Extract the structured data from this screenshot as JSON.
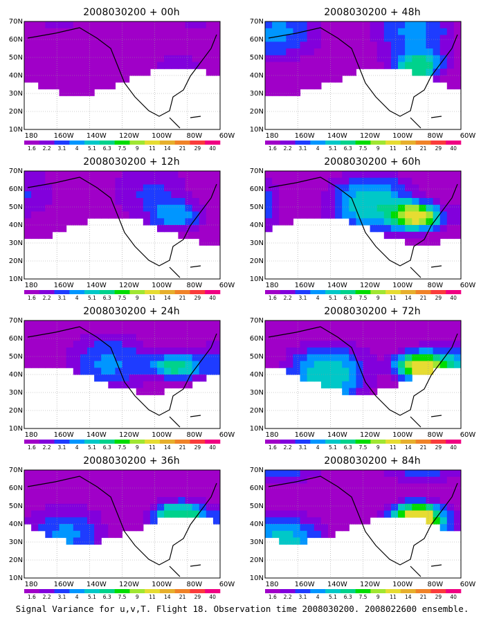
{
  "figure": {
    "caption": "Signal Variance for u,v,T. Flight 18. Observation time 2008030200. 2008022600 ensemble."
  },
  "colors": {
    "land_outline": "#000000",
    "grid": "#999999"
  },
  "chart_data": [
    {
      "type": "heatmap",
      "title": "2008030200 + 00h",
      "yticks": [
        "70N",
        "60N",
        "50N",
        "40N",
        "30N",
        "20N",
        "10N"
      ],
      "xticks": [
        "180",
        "160W",
        "140W",
        "120W",
        "100W",
        "80W",
        "60W"
      ],
      "legend_levels": [
        "1.6",
        "2.2",
        "3.1",
        "4",
        "5.1",
        "6.3",
        "7.5",
        "9",
        "11",
        "14",
        "21",
        "29",
        "40"
      ],
      "max_level": 1
    },
    {
      "type": "heatmap",
      "title": "2008030200 + 48h",
      "yticks": [
        "70N",
        "60N",
        "50N",
        "40N",
        "30N",
        "20N",
        "10N"
      ],
      "xticks": [
        "180",
        "160W",
        "140W",
        "120W",
        "100W",
        "80W",
        "60W"
      ],
      "legend_levels": [
        "1.6",
        "2.2",
        "3.1",
        "4",
        "5.1",
        "6.3",
        "7.5",
        "9",
        "11",
        "14",
        "21",
        "29",
        "40"
      ],
      "max_level": 5
    },
    {
      "type": "heatmap",
      "title": "2008030200 + 12h",
      "yticks": [
        "70N",
        "60N",
        "50N",
        "40N",
        "30N",
        "20N",
        "10N"
      ],
      "xticks": [
        "180",
        "160W",
        "140W",
        "120W",
        "100W",
        "80W",
        "60W"
      ],
      "legend_levels": [
        "1.6",
        "2.2",
        "3.1",
        "4",
        "5.1",
        "6.3",
        "7.5",
        "9",
        "11",
        "14",
        "21",
        "29",
        "40"
      ],
      "max_level": 3
    },
    {
      "type": "heatmap",
      "title": "2008030200 + 60h",
      "yticks": [
        "70N",
        "60N",
        "50N",
        "40N",
        "30N",
        "20N",
        "10N"
      ],
      "xticks": [
        "180",
        "160W",
        "140W",
        "120W",
        "100W",
        "80W",
        "60W"
      ],
      "legend_levels": [
        "1.6",
        "2.2",
        "3.1",
        "4",
        "5.1",
        "6.3",
        "7.5",
        "9",
        "11",
        "14",
        "21",
        "29",
        "40"
      ],
      "max_level": 8
    },
    {
      "type": "heatmap",
      "title": "2008030200 + 24h",
      "yticks": [
        "70N",
        "60N",
        "50N",
        "40N",
        "30N",
        "20N",
        "10N"
      ],
      "xticks": [
        "180",
        "160W",
        "140W",
        "120W",
        "100W",
        "80W",
        "60W"
      ],
      "legend_levels": [
        "1.6",
        "2.2",
        "3.1",
        "4",
        "5.1",
        "6.3",
        "7.5",
        "9",
        "11",
        "14",
        "21",
        "29",
        "40"
      ],
      "max_level": 5
    },
    {
      "type": "heatmap",
      "title": "2008030200 + 72h",
      "yticks": [
        "70N",
        "60N",
        "50N",
        "40N",
        "30N",
        "20N",
        "10N"
      ],
      "xticks": [
        "180",
        "160W",
        "140W",
        "120W",
        "100W",
        "80W",
        "60W"
      ],
      "legend_levels": [
        "1.6",
        "2.2",
        "3.1",
        "4",
        "5.1",
        "6.3",
        "7.5",
        "9",
        "11",
        "14",
        "21",
        "29",
        "40"
      ],
      "max_level": 8
    },
    {
      "type": "heatmap",
      "title": "2008030200 + 36h",
      "yticks": [
        "70N",
        "60N",
        "50N",
        "40N",
        "30N",
        "20N",
        "10N"
      ],
      "xticks": [
        "180",
        "160W",
        "140W",
        "120W",
        "100W",
        "80W",
        "60W"
      ],
      "legend_levels": [
        "1.6",
        "2.2",
        "3.1",
        "4",
        "5.1",
        "6.3",
        "7.5",
        "9",
        "11",
        "14",
        "21",
        "29",
        "40"
      ],
      "max_level": 5
    },
    {
      "type": "heatmap",
      "title": "2008030200 + 84h",
      "yticks": [
        "70N",
        "60N",
        "50N",
        "40N",
        "30N",
        "20N",
        "10N"
      ],
      "xticks": [
        "180",
        "160W",
        "140W",
        "120W",
        "100W",
        "80W",
        "60W"
      ],
      "legend_levels": [
        "1.6",
        "2.2",
        "3.1",
        "4",
        "5.1",
        "6.3",
        "7.5",
        "9",
        "11",
        "14",
        "21",
        "29",
        "40"
      ],
      "max_level": 8
    }
  ]
}
